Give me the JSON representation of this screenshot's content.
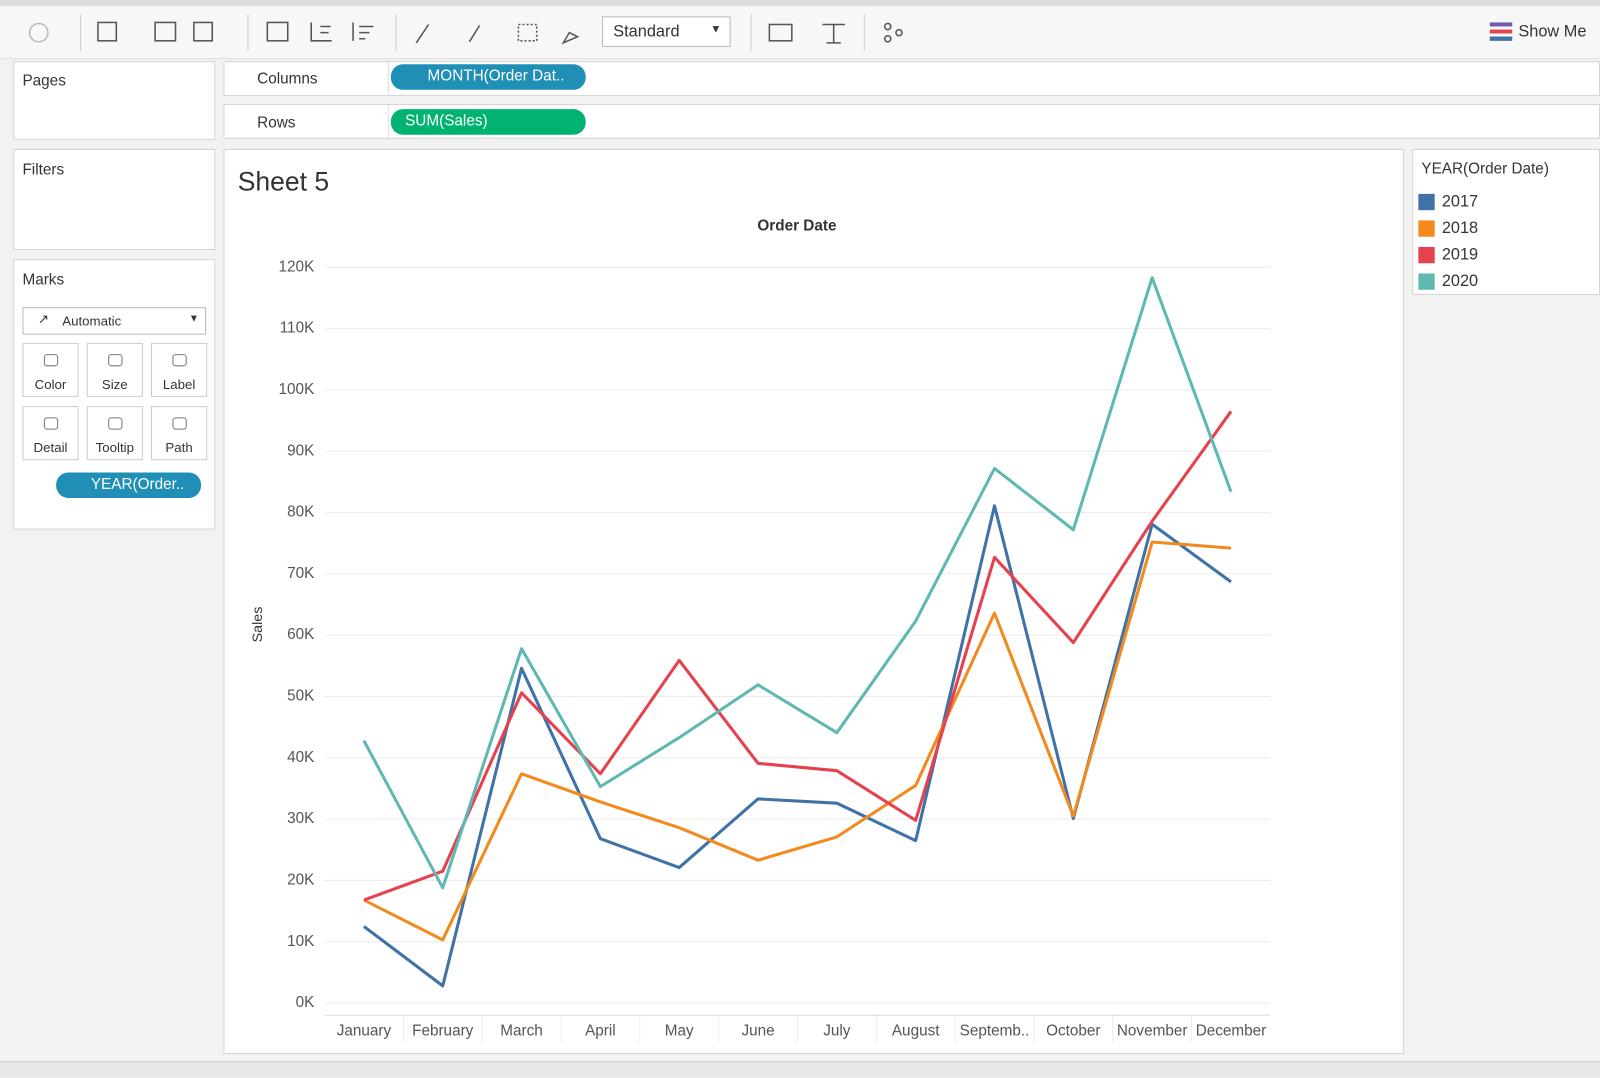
{
  "toolbar": {
    "fit": "Standard",
    "show_me": "Show Me"
  },
  "shelves": {
    "pages": "Pages",
    "columns": "Columns",
    "columns_pill": "MONTH(Order Dat..",
    "rows": "Rows",
    "rows_pill": "SUM(Sales)",
    "filters": "Filters"
  },
  "marks": {
    "title": "Marks",
    "mark_type": "Automatic",
    "buttons": [
      "Color",
      "Size",
      "Label",
      "Detail",
      "Tooltip",
      "Path"
    ],
    "pill": "YEAR(Order.."
  },
  "chart_data": {
    "type": "line",
    "title": "Sheet 5",
    "x_label": "Order Date",
    "y_label": "Sales",
    "legend_title": "YEAR(Order Date)",
    "categories": [
      "January",
      "February",
      "March",
      "April",
      "May",
      "June",
      "July",
      "August",
      "Septemb..",
      "October",
      "November",
      "December"
    ],
    "series": [
      {
        "name": "2017",
        "color": "#3f72a6",
        "values": [
          12500,
          2800,
          54600,
          26800,
          22100,
          33300,
          32600,
          26500,
          81100,
          30100,
          78100,
          68700
        ]
      },
      {
        "name": "2018",
        "color": "#f28a1e",
        "values": [
          16800,
          10300,
          37400,
          32800,
          28600,
          23300,
          27100,
          35500,
          63600,
          30500,
          75200,
          74200
        ]
      },
      {
        "name": "2019",
        "color": "#e6414f",
        "values": [
          16800,
          21500,
          50600,
          37400,
          55900,
          39100,
          37900,
          29800,
          72700,
          58800,
          78600,
          96500
        ]
      },
      {
        "name": "2020",
        "color": "#5fb8b2",
        "values": [
          42800,
          18800,
          57800,
          35300,
          43300,
          51900,
          44100,
          62300,
          87200,
          77200,
          118300,
          83400
        ]
      }
    ],
    "ylim": [
      0,
      120000
    ],
    "yticks": [
      {
        "value": 0,
        "label": "0K"
      },
      {
        "value": 10000,
        "label": "10K"
      },
      {
        "value": 20000,
        "label": "20K"
      },
      {
        "value": 30000,
        "label": "30K"
      },
      {
        "value": 40000,
        "label": "40K"
      },
      {
        "value": 50000,
        "label": "50K"
      },
      {
        "value": 60000,
        "label": "60K"
      },
      {
        "value": 70000,
        "label": "70K"
      },
      {
        "value": 80000,
        "label": "80K"
      },
      {
        "value": 90000,
        "label": "90K"
      },
      {
        "value": 100000,
        "label": "100K"
      },
      {
        "value": 110000,
        "label": "110K"
      },
      {
        "value": 120000,
        "label": "120K"
      }
    ],
    "grid": true,
    "legend": "right"
  }
}
